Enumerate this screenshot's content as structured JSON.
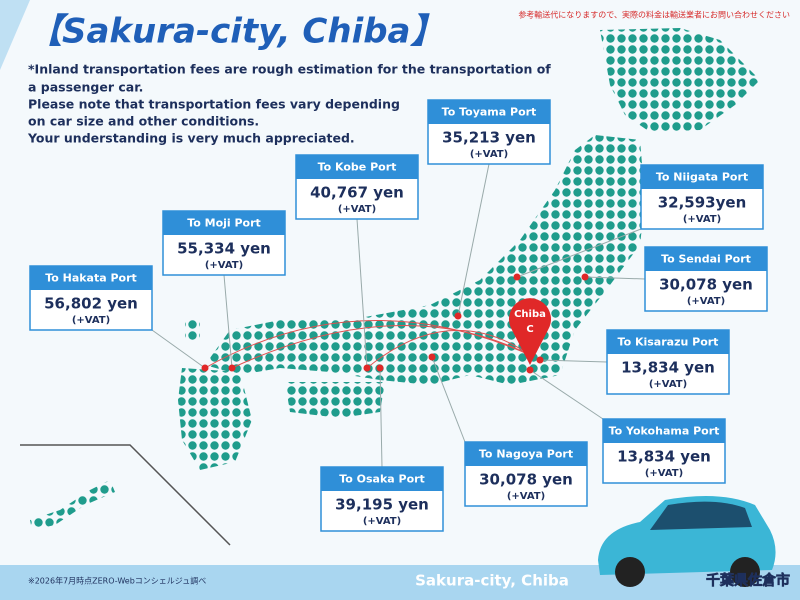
{
  "header": {
    "title": "【Sakura-city, Chiba】",
    "disclaimer": "参考輸送代になりますので、実際の料金は輸送業者にお問い合わせください"
  },
  "notes": [
    "*Inland transportation fees are rough estimation for the transportation of",
    "a passenger car.",
    "Please note that transportation fees vary depending",
    "on car size and other conditions.",
    "Your understanding is very much appreciated."
  ],
  "map": {
    "pin": "Chiba",
    "pin_letter": "C"
  },
  "ports": [
    {
      "name": "To Toyama Port",
      "price": "35,213 yen",
      "vat": "(+VAT)"
    },
    {
      "name": "To Kobe Port",
      "price": "40,767 yen",
      "vat": "(+VAT)"
    },
    {
      "name": "To Moji Port",
      "price": "55,334 yen",
      "vat": "(+VAT)"
    },
    {
      "name": "To Hakata Port",
      "price": "56,802 yen",
      "vat": "(+VAT)"
    },
    {
      "name": "To Niigata Port",
      "price": "32,593yen",
      "vat": "(+VAT)"
    },
    {
      "name": "To Sendai Port",
      "price": "30,078 yen",
      "vat": "(+VAT)"
    },
    {
      "name": "To Kisarazu Port",
      "price": "13,834 yen",
      "vat": "(+VAT)"
    },
    {
      "name": "To Yokohama Port",
      "price": "13,834 yen",
      "vat": "(+VAT)"
    },
    {
      "name": "To Nagoya Port",
      "price": "30,078 yen",
      "vat": "(+VAT)"
    },
    {
      "name": "To Osaka Port",
      "price": "39,195 yen",
      "vat": "(+VAT)"
    }
  ],
  "footer": {
    "source": "※2026年7月時点ZERO-Webコンシェルジュ調べ",
    "location": "Sakura-city, Chiba",
    "location_ja": "千葉県佐倉市"
  }
}
